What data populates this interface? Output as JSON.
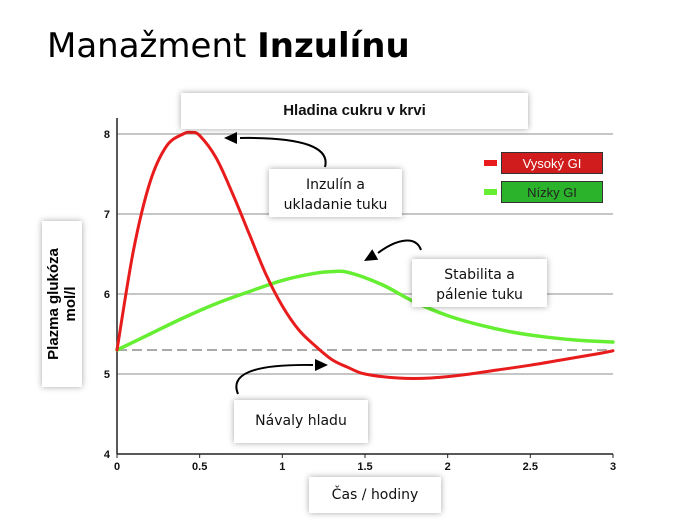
{
  "slide": {
    "title_normal": "Manažment ",
    "title_bold": "Inzulínu"
  },
  "chart_data": {
    "type": "line",
    "title": "Hladina cukru v krvi",
    "xlabel": "Čas / hodiny",
    "ylabel": [
      "Plazma glukóza",
      "mol/l"
    ],
    "xlim": [
      0,
      3
    ],
    "ylim": [
      4,
      8
    ],
    "x_ticks": [
      "0",
      "0.5",
      "1",
      "1.5",
      "2",
      "2.5",
      "3"
    ],
    "y_ticks": [
      "4",
      "5",
      "6",
      "7",
      "8"
    ],
    "grid": "horizontal",
    "baseline": 5.3,
    "legend_position": "top-right",
    "series": [
      {
        "name": "Vysoký GI",
        "color": "#e81c1c",
        "legend_bg": "#d01c1c",
        "x": [
          0,
          0.1,
          0.2,
          0.3,
          0.4,
          0.45,
          0.5,
          0.6,
          0.7,
          0.8,
          0.9,
          1.0,
          1.1,
          1.2,
          1.3,
          1.4,
          1.5,
          1.7,
          1.9,
          2.1,
          2.3,
          2.5,
          2.7,
          2.9,
          3.0
        ],
        "y": [
          5.3,
          6.55,
          7.4,
          7.85,
          8.0,
          8.02,
          7.98,
          7.7,
          7.25,
          6.75,
          6.25,
          5.85,
          5.55,
          5.35,
          5.18,
          5.08,
          5.0,
          4.95,
          4.95,
          4.99,
          5.05,
          5.11,
          5.18,
          5.25,
          5.29
        ]
      },
      {
        "name": "Nízky GI",
        "color": "#66ee33",
        "legend_bg": "#2bb32b",
        "x": [
          0,
          0.2,
          0.4,
          0.6,
          0.8,
          1.0,
          1.2,
          1.3,
          1.4,
          1.6,
          1.8,
          2.0,
          2.2,
          2.4,
          2.6,
          2.8,
          3.0
        ],
        "y": [
          5.3,
          5.5,
          5.7,
          5.88,
          6.03,
          6.17,
          6.26,
          6.28,
          6.27,
          6.12,
          5.9,
          5.73,
          5.61,
          5.52,
          5.46,
          5.42,
          5.4
        ]
      }
    ],
    "annotations": [
      {
        "text": [
          "Inzulín a",
          "ukladanie tuku"
        ]
      },
      {
        "text": [
          "Stabilita a",
          "pálenie tuku"
        ]
      },
      {
        "text": [
          "Návaly hladu"
        ]
      }
    ]
  }
}
